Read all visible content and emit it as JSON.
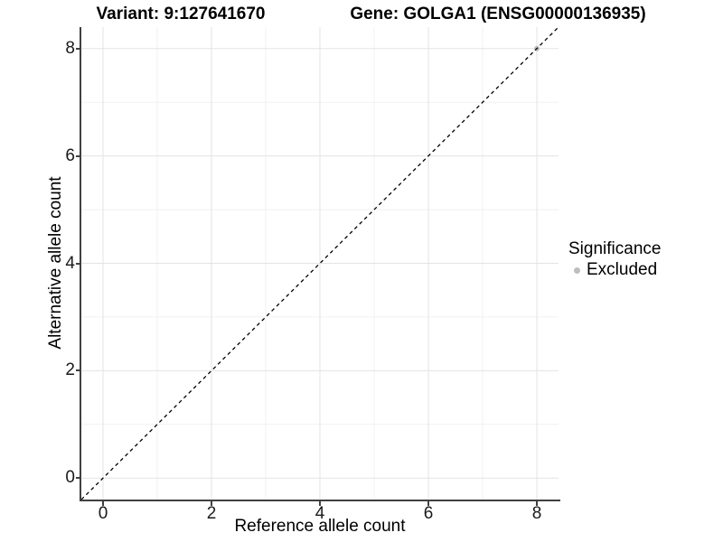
{
  "figure": {
    "variant_title": "Variant: 9:127641670",
    "gene_title": "Gene: GOLGA1 (ENSG00000136935)"
  },
  "chart_data": {
    "type": "scatter",
    "title": "Variant: 9:127641670 / Gene: GOLGA1 (ENSG00000136935)",
    "xlabel": "Reference allele count",
    "ylabel": "Alternative allele count",
    "xlim": [
      -0.4,
      8.4
    ],
    "ylim": [
      -0.4,
      8.4
    ],
    "x_ticks": [
      0,
      2,
      4,
      6,
      8
    ],
    "y_ticks": [
      0,
      2,
      4,
      6,
      8
    ],
    "x_minor_ticks": [
      1,
      3,
      5,
      7
    ],
    "y_minor_ticks": [
      1,
      3,
      5,
      7
    ],
    "grid": "on",
    "series": [
      {
        "name": "Excluded",
        "color": "#bebebe",
        "points": [
          {
            "x": 8,
            "y": 8
          }
        ]
      }
    ],
    "reference_line": {
      "slope": 1,
      "intercept": 0,
      "style": "dashed",
      "color": "#000000"
    },
    "legend": {
      "position": "right",
      "title": "Significance",
      "items": [
        {
          "label": "Excluded",
          "color": "#bebebe"
        }
      ]
    },
    "colors": {
      "grid_major": "#e3e3e3",
      "grid_minor": "#f1f1f1",
      "axis_line": "#404040",
      "point_gray": "#bebebe"
    }
  }
}
